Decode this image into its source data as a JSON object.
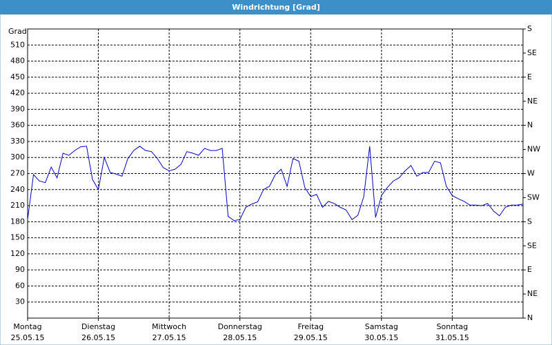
{
  "chart_data": {
    "type": "line",
    "title": "Windrichtung [Grad]",
    "y_label": "Grad",
    "x": [
      0,
      2,
      4,
      6,
      8,
      10,
      12,
      14,
      16,
      18,
      20,
      22,
      24,
      26,
      28,
      30,
      32,
      34,
      36,
      38,
      40,
      42,
      44,
      46,
      48,
      50,
      52,
      54,
      56,
      58,
      60,
      62,
      64,
      66,
      68,
      70,
      72,
      74,
      76,
      78,
      80,
      82,
      84,
      86,
      88,
      90,
      92,
      94,
      96,
      98,
      100,
      102,
      104,
      106,
      108,
      110,
      112,
      114,
      116,
      118,
      120,
      122,
      124,
      126,
      128,
      130,
      132,
      134,
      136,
      138,
      140,
      142,
      144,
      146,
      148,
      150,
      152,
      154,
      156,
      158,
      160,
      162,
      164,
      166,
      168
    ],
    "series": [
      {
        "name": "Windrichtung",
        "color": "#0000c0",
        "values": [
          184,
          268,
          256,
          253,
          282,
          262,
          308,
          304,
          313,
          320,
          321,
          259,
          240,
          300,
          272,
          269,
          265,
          298,
          313,
          321,
          313,
          311,
          298,
          281,
          275,
          278,
          287,
          311,
          308,
          304,
          317,
          313,
          313,
          317,
          190,
          182,
          184,
          207,
          213,
          217,
          240,
          246,
          268,
          278,
          246,
          298,
          293,
          244,
          227,
          231,
          207,
          218,
          214,
          207,
          202,
          184,
          192,
          227,
          321,
          188,
          229,
          244,
          256,
          262,
          275,
          285,
          265,
          272,
          272,
          293,
          290,
          246,
          229,
          223,
          218,
          211,
          211,
          210,
          214,
          200,
          191,
          207,
          211,
          211,
          213
        ]
      }
    ],
    "xlim": [
      0,
      168
    ],
    "xticks": [
      {
        "value": 0,
        "label": "Montag",
        "date": "25.05.15"
      },
      {
        "value": 24,
        "label": "Dienstag",
        "date": "26.05.15"
      },
      {
        "value": 48,
        "label": "Mittwoch",
        "date": "27.05.15"
      },
      {
        "value": 72,
        "label": "Donnerstag",
        "date": "28.05.15"
      },
      {
        "value": 96,
        "label": "Freitag",
        "date": "29.05.15"
      },
      {
        "value": 120,
        "label": "Samstag",
        "date": "30.05.15"
      },
      {
        "value": 144,
        "label": "Sonntag",
        "date": "31.05.15"
      }
    ],
    "ylim": [
      0,
      540
    ],
    "yticks": [
      30,
      60,
      90,
      120,
      150,
      180,
      210,
      240,
      270,
      300,
      330,
      360,
      390,
      420,
      450,
      480,
      510
    ],
    "y2lim": [
      0,
      540
    ],
    "y2ticks": [
      {
        "value": 0,
        "label": "N"
      },
      {
        "value": 45,
        "label": "NE"
      },
      {
        "value": 90,
        "label": "E"
      },
      {
        "value": 135,
        "label": "SE"
      },
      {
        "value": 180,
        "label": "S"
      },
      {
        "value": 225,
        "label": "SW"
      },
      {
        "value": 270,
        "label": "W"
      },
      {
        "value": 315,
        "label": "NW"
      },
      {
        "value": 360,
        "label": "N"
      },
      {
        "value": 405,
        "label": "NE"
      },
      {
        "value": 450,
        "label": "E"
      },
      {
        "value": 495,
        "label": "SE"
      },
      {
        "value": 540,
        "label": "S"
      }
    ],
    "grid": true
  }
}
